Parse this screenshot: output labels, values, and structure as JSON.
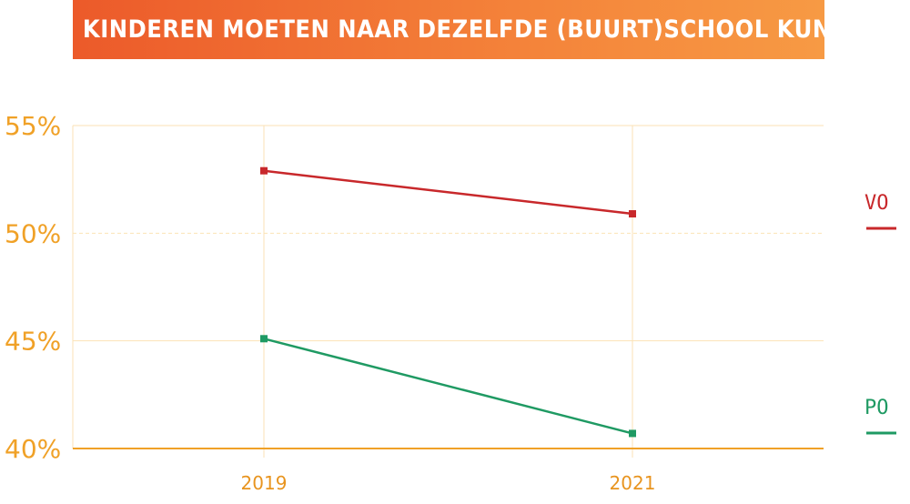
{
  "chart_data": {
    "type": "line",
    "title": "ALLE KINDEREN MOETEN NAAR DEZELFDE (BUURT)SCHOOL KUNNEN",
    "categories": [
      "2019",
      "2021"
    ],
    "ylim": [
      40,
      55
    ],
    "yticks": [
      55,
      50,
      45,
      40
    ],
    "ytick_labels": [
      "55%",
      "50%",
      "45%",
      "40%"
    ],
    "grid": true,
    "legend_position": "right",
    "series": [
      {
        "name": "VO",
        "values": [
          52.9,
          50.9
        ],
        "color": "#c8282b"
      },
      {
        "name": "PO",
        "values": [
          45.1,
          40.7
        ],
        "color": "#1f9a63"
      }
    ]
  },
  "colors": {
    "axis": "#f0a127",
    "grid": "#fbe2b5",
    "title_bg": "#f07a36"
  }
}
